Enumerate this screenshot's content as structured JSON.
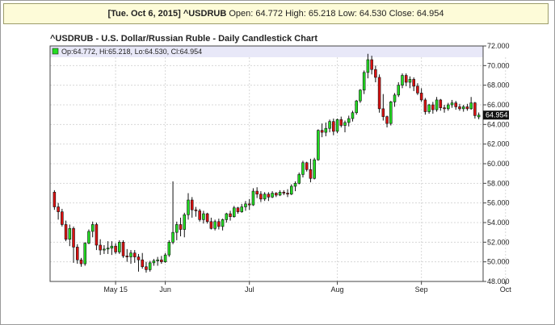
{
  "header": {
    "date": "[Tue. Oct 6, 2015]",
    "symbol": "^USDRUB",
    "open_label": "Open:",
    "open": "64.772",
    "high_label": "High:",
    "high": "65.218",
    "low_label": "Low:",
    "low": "64.530",
    "close_label": "Close:",
    "close": "64.954"
  },
  "chart_data": {
    "type": "candlestick",
    "title": "^USDRUB - U.S. Dollar/Russian Ruble - Daily Candlestick Chart",
    "legend": "Op:64.772, Hi:65.218, Lo:64.530, Cl:64.954",
    "legend_placement": "top-left",
    "last_value_label": "64.954",
    "ylim": [
      48,
      72
    ],
    "y_ticks": [
      48,
      50,
      52,
      54,
      56,
      58,
      60,
      62,
      64,
      66,
      68,
      70,
      72
    ],
    "y_tick_labels": [
      "48.000",
      "50.000",
      "52.000",
      "54.000",
      "56.000",
      "58.000",
      "60.000",
      "62.000",
      "64.000",
      "66.000",
      "68.000",
      "70.000",
      "72.000"
    ],
    "grid": true,
    "x_ticks": [
      {
        "label": "May 15",
        "index": 16
      },
      {
        "label": "Jun",
        "index": 29
      },
      {
        "label": "Jul",
        "index": 51
      },
      {
        "label": "Aug",
        "index": 74
      },
      {
        "label": "Sep",
        "index": 96
      },
      {
        "label": "Oct",
        "index": 118
      }
    ],
    "up_color": "#22dd22",
    "down_color": "#dd1111",
    "candles": [
      [
        57.1,
        57.3,
        55.3,
        55.6
      ],
      [
        55.6,
        56.0,
        54.3,
        55.1
      ],
      [
        55.1,
        55.4,
        53.6,
        53.8
      ],
      [
        53.8,
        54.2,
        52.1,
        52.3
      ],
      [
        52.3,
        53.8,
        51.6,
        53.4
      ],
      [
        53.4,
        53.6,
        49.9,
        51.5
      ],
      [
        51.5,
        51.8,
        49.8,
        50.2
      ],
      [
        50.2,
        50.4,
        49.5,
        49.8
      ],
      [
        49.8,
        52.0,
        49.6,
        51.9
      ],
      [
        51.9,
        53.3,
        51.8,
        53.1
      ],
      [
        53.1,
        54.1,
        52.5,
        53.8
      ],
      [
        53.8,
        54.0,
        51.2,
        51.7
      ],
      [
        51.7,
        52.3,
        50.7,
        51.2
      ],
      [
        51.2,
        51.7,
        50.8,
        51.3
      ],
      [
        51.3,
        52.1,
        50.8,
        51.4
      ],
      [
        51.4,
        52.1,
        50.7,
        51.6
      ],
      [
        51.6,
        51.9,
        50.8,
        51.0
      ],
      [
        51.0,
        52.2,
        50.8,
        52.0
      ],
      [
        52.0,
        52.2,
        50.4,
        50.6
      ],
      [
        50.6,
        51.3,
        50.0,
        50.5
      ],
      [
        50.5,
        51.2,
        49.8,
        50.9
      ],
      [
        50.9,
        51.2,
        49.9,
        50.5
      ],
      [
        50.5,
        50.8,
        49.0,
        50.2
      ],
      [
        50.2,
        50.9,
        49.3,
        49.5
      ],
      [
        49.5,
        50.0,
        48.9,
        49.2
      ],
      [
        49.2,
        50.1,
        49.0,
        49.9
      ],
      [
        49.9,
        50.3,
        49.6,
        50.1
      ],
      [
        50.1,
        50.5,
        49.6,
        50.2
      ],
      [
        50.2,
        50.6,
        49.8,
        50.0
      ],
      [
        50.0,
        50.9,
        49.9,
        50.7
      ],
      [
        50.7,
        52.2,
        50.5,
        52.0
      ],
      [
        52.0,
        58.2,
        51.8,
        53.0
      ],
      [
        53.0,
        54.1,
        52.2,
        53.8
      ],
      [
        53.8,
        54.5,
        52.6,
        53.3
      ],
      [
        53.3,
        55.0,
        52.5,
        54.8
      ],
      [
        54.8,
        57.0,
        54.3,
        56.3
      ],
      [
        56.3,
        56.6,
        54.5,
        55.3
      ],
      [
        55.3,
        55.6,
        54.6,
        55.2
      ],
      [
        55.2,
        55.4,
        54.1,
        54.3
      ],
      [
        54.3,
        55.2,
        53.9,
        54.9
      ],
      [
        54.9,
        55.0,
        53.9,
        54.1
      ],
      [
        54.1,
        54.5,
        53.3,
        53.4
      ],
      [
        53.4,
        54.3,
        53.2,
        54.1
      ],
      [
        54.1,
        54.4,
        53.3,
        53.6
      ],
      [
        53.6,
        54.4,
        53.2,
        54.3
      ],
      [
        54.3,
        55.0,
        54.0,
        54.9
      ],
      [
        54.9,
        55.2,
        54.2,
        54.6
      ],
      [
        54.6,
        55.7,
        54.5,
        55.5
      ],
      [
        55.5,
        55.6,
        54.9,
        55.1
      ],
      [
        55.1,
        55.9,
        55.0,
        55.6
      ],
      [
        55.6,
        56.2,
        55.2,
        55.9
      ],
      [
        55.9,
        56.4,
        55.3,
        55.8
      ],
      [
        55.8,
        57.5,
        55.7,
        57.2
      ],
      [
        57.2,
        57.6,
        56.5,
        56.9
      ],
      [
        56.9,
        57.2,
        56.1,
        56.4
      ],
      [
        56.4,
        57.1,
        56.2,
        56.9
      ],
      [
        56.9,
        57.1,
        56.2,
        56.6
      ],
      [
        56.6,
        57.2,
        56.5,
        57.0
      ],
      [
        57.0,
        57.1,
        56.6,
        56.8
      ],
      [
        56.8,
        57.3,
        56.7,
        57.1
      ],
      [
        57.1,
        57.3,
        56.8,
        57.0
      ],
      [
        57.0,
        57.4,
        56.6,
        56.9
      ],
      [
        56.9,
        57.9,
        56.8,
        57.7
      ],
      [
        57.7,
        58.2,
        57.2,
        58.0
      ],
      [
        58.0,
        59.1,
        57.9,
        58.9
      ],
      [
        58.9,
        60.3,
        58.6,
        60.1
      ],
      [
        60.1,
        60.2,
        59.2,
        59.4
      ],
      [
        59.4,
        60.5,
        58.1,
        58.5
      ],
      [
        58.5,
        60.6,
        58.4,
        60.4
      ],
      [
        60.4,
        63.5,
        60.3,
        63.4
      ],
      [
        63.4,
        64.1,
        62.7,
        63.2
      ],
      [
        63.2,
        64.2,
        62.8,
        63.6
      ],
      [
        63.6,
        64.5,
        63.2,
        64.3
      ],
      [
        64.3,
        64.6,
        62.9,
        63.3
      ],
      [
        63.3,
        64.6,
        63.1,
        64.5
      ],
      [
        64.5,
        64.8,
        63.7,
        63.9
      ],
      [
        63.9,
        64.4,
        63.2,
        64.2
      ],
      [
        64.2,
        64.9,
        63.8,
        64.6
      ],
      [
        64.6,
        65.4,
        64.3,
        65.2
      ],
      [
        65.2,
        66.5,
        65.0,
        66.4
      ],
      [
        66.4,
        67.6,
        66.2,
        67.5
      ],
      [
        67.5,
        69.5,
        67.1,
        69.3
      ],
      [
        69.3,
        71.2,
        68.7,
        70.6
      ],
      [
        70.6,
        71.0,
        69.1,
        69.6
      ],
      [
        69.6,
        70.0,
        68.3,
        68.8
      ],
      [
        68.8,
        69.1,
        65.2,
        65.6
      ],
      [
        65.6,
        67.1,
        64.4,
        64.8
      ],
      [
        64.8,
        64.9,
        63.7,
        64.1
      ],
      [
        64.1,
        66.4,
        63.9,
        66.3
      ],
      [
        66.3,
        67.2,
        65.8,
        67.0
      ],
      [
        67.0,
        68.3,
        66.8,
        68.0
      ],
      [
        68.0,
        69.2,
        67.7,
        69.0
      ],
      [
        69.0,
        69.2,
        67.9,
        68.3
      ],
      [
        68.3,
        68.9,
        67.7,
        68.6
      ],
      [
        68.6,
        68.8,
        67.4,
        67.9
      ],
      [
        67.9,
        68.2,
        67.0,
        67.2
      ],
      [
        67.2,
        67.7,
        66.3,
        66.5
      ],
      [
        66.5,
        66.7,
        65.0,
        65.3
      ],
      [
        65.3,
        66.1,
        65.1,
        66.0
      ],
      [
        66.0,
        66.3,
        65.1,
        65.5
      ],
      [
        65.5,
        66.8,
        65.3,
        66.5
      ],
      [
        66.5,
        66.6,
        65.4,
        65.7
      ],
      [
        65.7,
        66.0,
        65.2,
        65.6
      ],
      [
        65.6,
        66.2,
        65.4,
        66.0
      ],
      [
        66.0,
        66.5,
        65.7,
        66.2
      ],
      [
        66.2,
        66.4,
        65.5,
        65.8
      ],
      [
        65.8,
        66.1,
        65.4,
        65.6
      ],
      [
        65.6,
        66.0,
        65.3,
        65.8
      ],
      [
        65.8,
        66.1,
        65.4,
        65.6
      ],
      [
        65.6,
        66.8,
        65.5,
        66.2
      ],
      [
        66.2,
        66.3,
        64.6,
        64.9
      ],
      [
        64.77,
        65.218,
        64.53,
        64.954
      ]
    ]
  }
}
